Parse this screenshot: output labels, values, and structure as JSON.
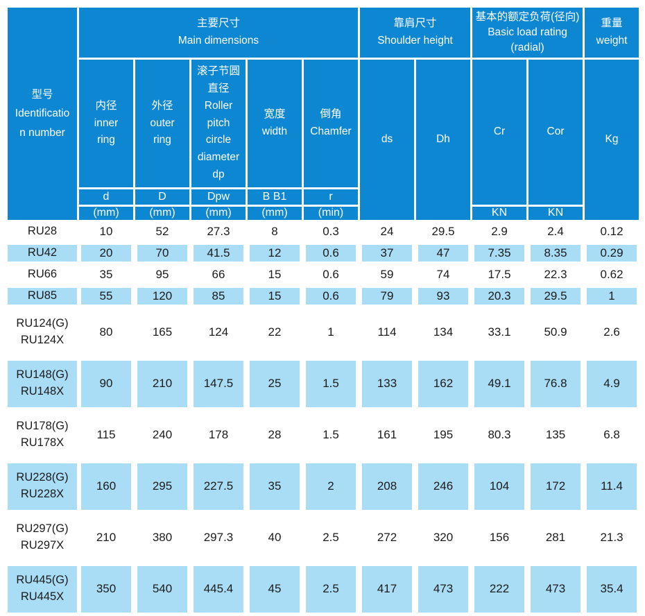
{
  "colors": {
    "header_blue": "#0d87d1",
    "row_light_blue": "#a9dcf5",
    "border_white": "#ffffff",
    "text_dark": "#1b1b1b",
    "header_text": "#ffffff"
  },
  "header": {
    "identification": "型号\nIdentificatio\nn number",
    "groups": [
      {
        "label": "主要尺寸\nMain dimensions",
        "span": 5
      },
      {
        "label": "靠肩尺寸\nShoulder height",
        "span": 2
      },
      {
        "label": "基本的额定负荷(径向)\nBasic load rating\n(radial)",
        "span": 2
      },
      {
        "label": "重量\nweight",
        "span": 1
      }
    ],
    "sub": {
      "inner": "内径\ninner\nring",
      "outer": "外径\nouter\nring",
      "pitch": "滚子节圆\n直径\nRoller\npitch\ncircle\ndiameter\ndp",
      "width": "宽度\nwidth",
      "chamfer": "倒角\nChamfer",
      "ds": "ds",
      "dh": "Dh",
      "cr": "Cr",
      "cor": "Cor",
      "kg": "Kg"
    },
    "symbols": [
      "d",
      "D",
      "Dpw",
      "B B1",
      "r"
    ],
    "units": [
      "(mm)",
      "(mm)",
      "(mm)",
      "(mm)",
      "(min)",
      "KN",
      "KN"
    ]
  },
  "rows": [
    {
      "model": "RU28",
      "values": [
        "10",
        "52",
        "27.3",
        "8",
        "0.3",
        "24",
        "29.5",
        "2.9",
        "2.4",
        "0.12"
      ]
    },
    {
      "model": "RU42",
      "values": [
        "20",
        "70",
        "41.5",
        "12",
        "0.6",
        "37",
        "47",
        "7.35",
        "8.35",
        "0.29"
      ]
    },
    {
      "model": "RU66",
      "values": [
        "35",
        "95",
        "66",
        "15",
        "0.6",
        "59",
        "74",
        "17.5",
        "22.3",
        "0.62"
      ]
    },
    {
      "model": "RU85",
      "values": [
        "55",
        "120",
        "85",
        "15",
        "0.6",
        "79",
        "93",
        "20.3",
        "29.5",
        "1"
      ]
    },
    {
      "model": "RU124(G)\nRU124X",
      "values": [
        "80",
        "165",
        "124",
        "22",
        "1",
        "114",
        "134",
        "33.1",
        "50.9",
        "2.6"
      ]
    },
    {
      "model": "RU148(G)\nRU148X",
      "values": [
        "90",
        "210",
        "147.5",
        "25",
        "1.5",
        "133",
        "162",
        "49.1",
        "76.8",
        "4.9"
      ]
    },
    {
      "model": "RU178(G)\nRU178X",
      "values": [
        "115",
        "240",
        "178",
        "28",
        "1.5",
        "161",
        "195",
        "80.3",
        "135",
        "6.8"
      ]
    },
    {
      "model": "RU228(G)\nRU228X",
      "values": [
        "160",
        "295",
        "227.5",
        "35",
        "2",
        "208",
        "246",
        "104",
        "172",
        "11.4"
      ]
    },
    {
      "model": "RU297(G)\nRU297X",
      "values": [
        "210",
        "380",
        "297.3",
        "40",
        "2.5",
        "272",
        "320",
        "156",
        "281",
        "21.3"
      ]
    },
    {
      "model": "RU445(G)\nRU445X",
      "values": [
        "350",
        "540",
        "445.4",
        "45",
        "2.5",
        "417",
        "473",
        "222",
        "473",
        "35.4"
      ]
    }
  ]
}
